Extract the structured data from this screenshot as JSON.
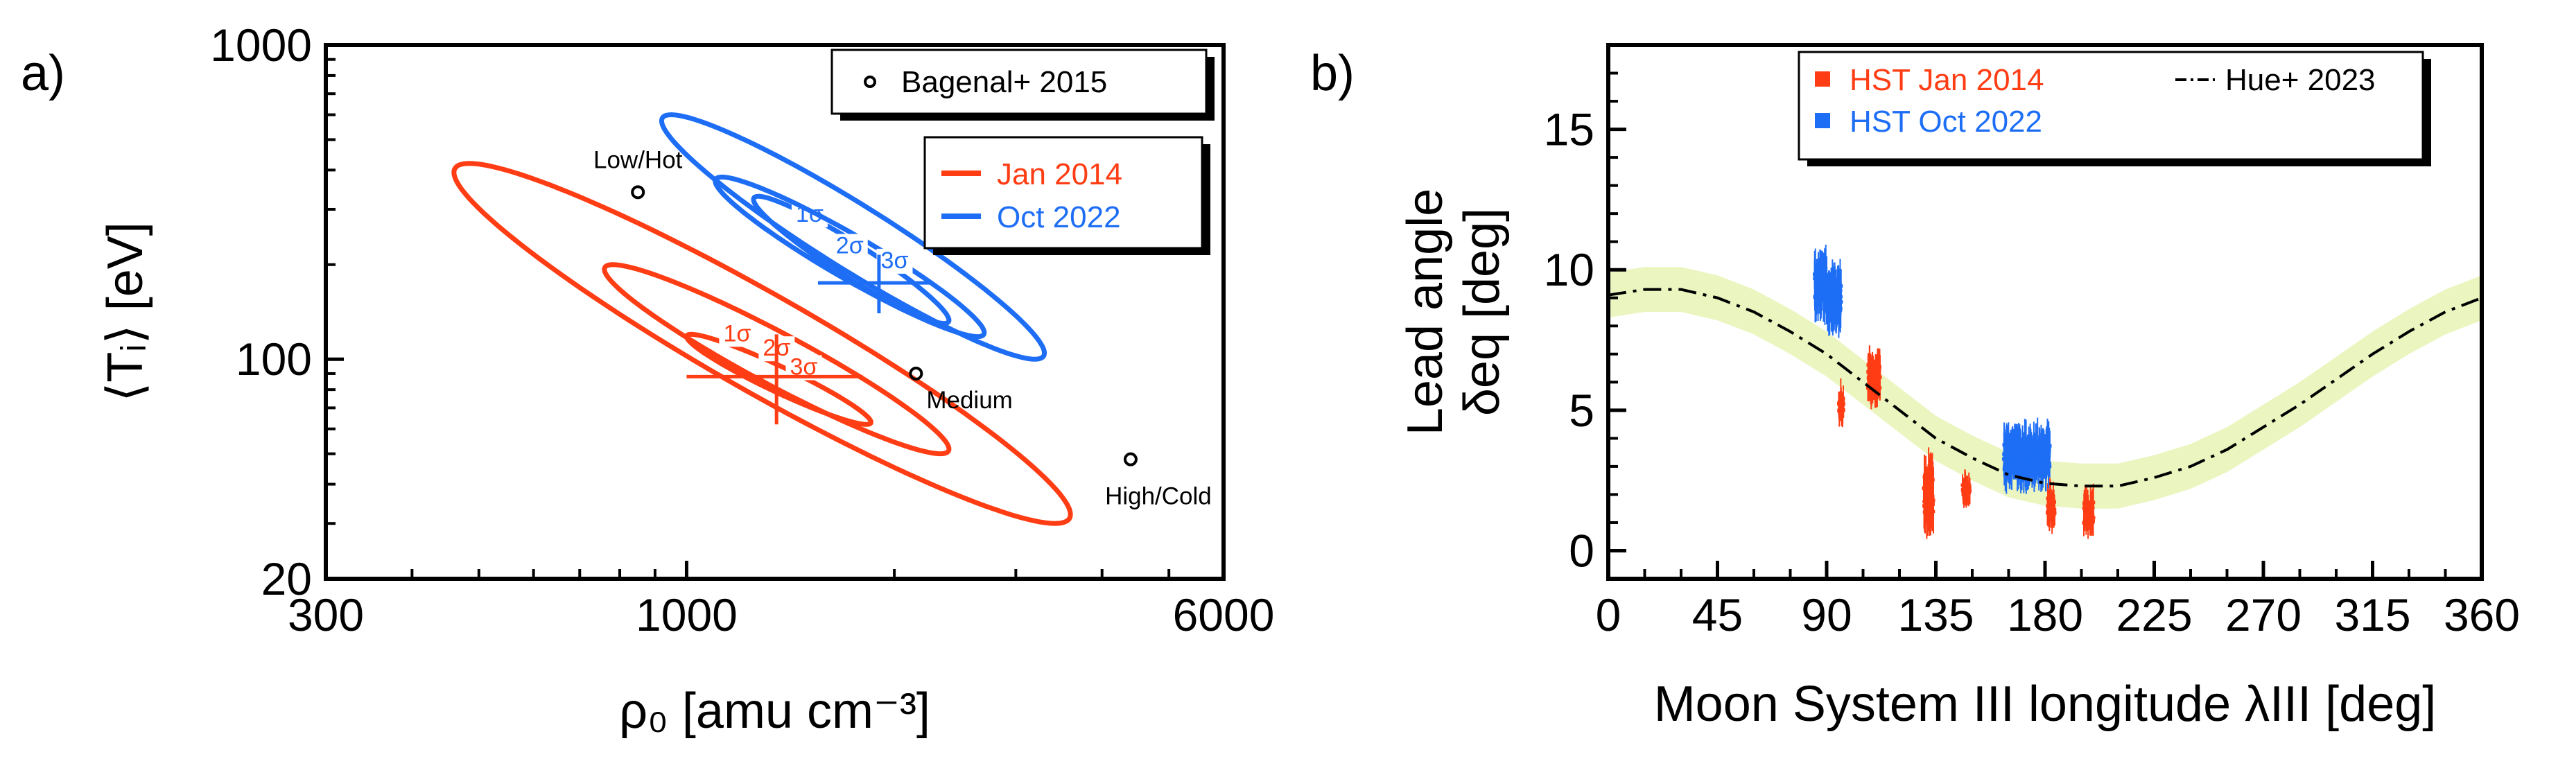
{
  "figure": {
    "panel_a_label": "a)",
    "panel_b_label": "b)"
  },
  "chart_data": [
    {
      "id": "a",
      "type": "scatter",
      "title": "",
      "xlabel": "ρ₀ [amu cm⁻³]",
      "ylabel": "⟨Tᵢ⟩ [eV]",
      "xscale": "log",
      "yscale": "log",
      "xlim": [
        300,
        6000
      ],
      "ylim": [
        20,
        1000
      ],
      "xticks": [
        300,
        1000,
        6000
      ],
      "yticks": [
        20,
        100,
        1000
      ],
      "grid": false,
      "legend_markers": {
        "placement": "top-right",
        "entries": [
          {
            "label": "Bagenal+ 2015",
            "marker": "open-circle"
          }
        ]
      },
      "legend_contours": {
        "placement": "upper-right",
        "entries": [
          {
            "label": "Jan 2014",
            "color": "#ff3d14"
          },
          {
            "label": "Oct 2022",
            "color": "#1e6ef5"
          }
        ]
      },
      "reference_points": [
        {
          "name": "Low/Hot",
          "x": 850,
          "y": 340
        },
        {
          "name": "Medium",
          "x": 2150,
          "y": 90
        },
        {
          "name": "High/Cold",
          "x": 4400,
          "y": 48
        }
      ],
      "contours": [
        {
          "name": "Jan 2014",
          "color": "#ff3d14",
          "center": [
            1350,
            88
          ],
          "error_x": [
            1000,
            1800
          ],
          "error_y": [
            62,
            120
          ],
          "levels": [
            {
              "label": "1σ",
              "xmin": 1000,
              "xmax": 1850,
              "ymin": 62,
              "ymax": 120
            },
            {
              "label": "2σ",
              "xmin": 760,
              "xmax": 2400,
              "ymin": 50,
              "ymax": 200
            },
            {
              "label": "3σ",
              "xmin": 460,
              "xmax": 3600,
              "ymin": 30,
              "ymax": 420
            }
          ]
        },
        {
          "name": "Oct 2022",
          "color": "#1e6ef5",
          "center": [
            1900,
            175
          ],
          "error_x": [
            1550,
            2250
          ],
          "error_y": [
            140,
            215
          ],
          "levels": [
            {
              "label": "1σ",
              "xmin": 1250,
              "xmax": 2400,
              "ymin": 130,
              "ymax": 330
            },
            {
              "label": "2σ",
              "xmin": 1100,
              "xmax": 2700,
              "ymin": 118,
              "ymax": 380
            },
            {
              "label": "3σ",
              "xmin": 920,
              "xmax": 3300,
              "ymin": 100,
              "ymax": 600
            }
          ]
        }
      ]
    },
    {
      "id": "b",
      "type": "scatter",
      "title": "",
      "xlabel": "Moon System III longitude λIII [deg]",
      "ylabel_line1": "Lead angle",
      "ylabel_line2": "δeq [deg]",
      "xlim": [
        0,
        360
      ],
      "ylim": [
        -1,
        18
      ],
      "xticks": [
        0,
        45,
        90,
        135,
        180,
        225,
        270,
        315,
        360
      ],
      "yticks": [
        0,
        5,
        10,
        15
      ],
      "grid": false,
      "legend": {
        "placement": "top",
        "entries": [
          {
            "label": "HST Jan 2014",
            "color": "#ff3d14",
            "marker": "square"
          },
          {
            "label": "HST Oct 2022",
            "color": "#1e6ef5",
            "marker": "square"
          },
          {
            "label": "Hue+ 2023",
            "color": "#000000",
            "marker": "dash-dot-line"
          }
        ]
      },
      "model": {
        "name": "Hue+ 2023",
        "band_color": "#eaf5bf",
        "band_halfwidth": 0.8,
        "points": [
          [
            0,
            9.1
          ],
          [
            15,
            9.3
          ],
          [
            30,
            9.3
          ],
          [
            45,
            9.0
          ],
          [
            60,
            8.5
          ],
          [
            75,
            7.8
          ],
          [
            90,
            7.0
          ],
          [
            105,
            6.0
          ],
          [
            120,
            5.0
          ],
          [
            135,
            4.0
          ],
          [
            150,
            3.3
          ],
          [
            165,
            2.7
          ],
          [
            180,
            2.4
          ],
          [
            195,
            2.3
          ],
          [
            210,
            2.3
          ],
          [
            225,
            2.6
          ],
          [
            240,
            3.0
          ],
          [
            255,
            3.6
          ],
          [
            270,
            4.4
          ],
          [
            285,
            5.2
          ],
          [
            300,
            6.1
          ],
          [
            315,
            7.0
          ],
          [
            330,
            7.8
          ],
          [
            345,
            8.5
          ],
          [
            360,
            9.0
          ]
        ]
      },
      "series": [
        {
          "name": "HST Jan 2014",
          "color": "#ff3d14",
          "segments": [
            {
              "xrange": [
                95,
                97
              ],
              "yrange": [
                4.5,
                6.0
              ]
            },
            {
              "xrange": [
                107,
                112
              ],
              "yrange": [
                5.2,
                7.2
              ]
            },
            {
              "xrange": [
                130,
                134
              ],
              "yrange": [
                0.5,
                3.5
              ]
            },
            {
              "xrange": [
                146,
                149
              ],
              "yrange": [
                1.5,
                2.8
              ]
            },
            {
              "xrange": [
                181,
                184
              ],
              "yrange": [
                0.8,
                2.5
              ]
            },
            {
              "xrange": [
                196,
                200
              ],
              "yrange": [
                0.5,
                2.2
              ]
            }
          ]
        },
        {
          "name": "HST Oct 2022",
          "color": "#1e6ef5",
          "segments": [
            {
              "xrange": [
                85,
                90
              ],
              "yrange": [
                8.2,
                10.8
              ]
            },
            {
              "xrange": [
                90,
                96
              ],
              "yrange": [
                7.8,
                10.2
              ]
            },
            {
              "xrange": [
                163,
                182
              ],
              "yrange": [
                2.2,
                4.5
              ]
            }
          ]
        }
      ]
    }
  ]
}
